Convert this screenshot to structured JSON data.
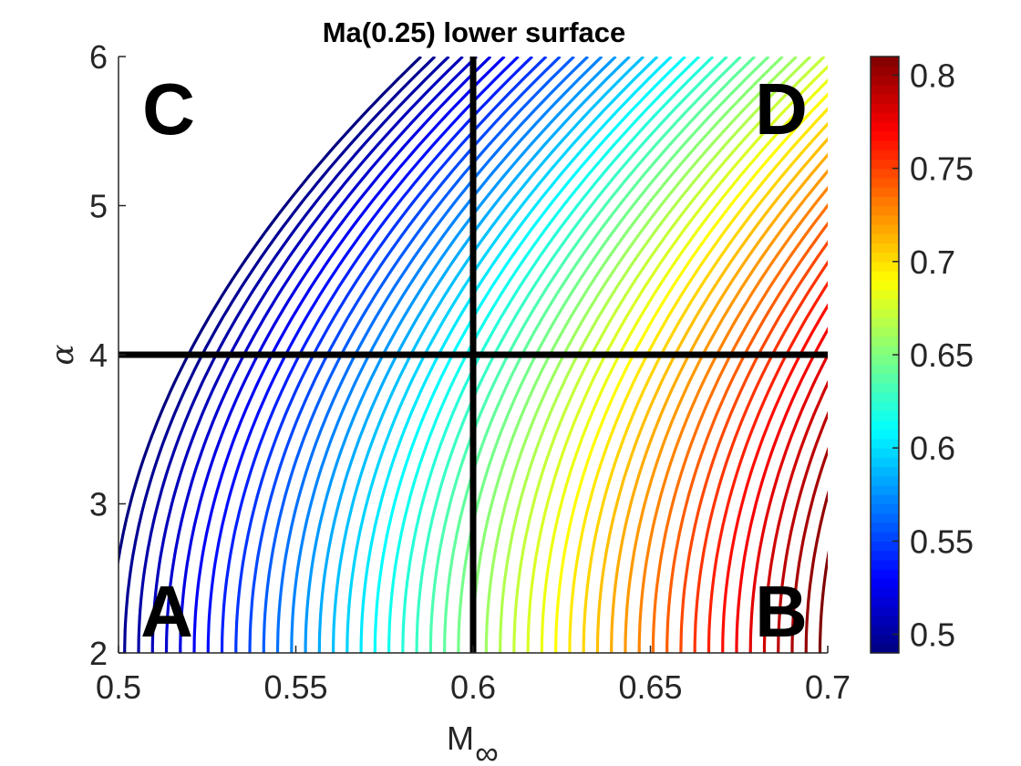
{
  "chart_data": {
    "type": "contour",
    "title": "Ma(0.25) lower surface",
    "xlabel": "M",
    "xlabel_subscript": "∞",
    "ylabel": "α",
    "xlim": [
      0.5,
      0.7
    ],
    "ylim": [
      2,
      6
    ],
    "xticks": [
      0.5,
      0.55,
      0.6,
      0.65,
      0.7
    ],
    "xtick_labels": [
      "0.5",
      "0.55",
      "0.6",
      "0.65",
      "0.7"
    ],
    "yticks": [
      2,
      3,
      4,
      5,
      6
    ],
    "ytick_labels": [
      "2",
      "3",
      "4",
      "5",
      "6"
    ],
    "colormap": "jet",
    "colorbar": {
      "range": [
        0.49,
        0.81
      ],
      "ticks": [
        0.5,
        0.55,
        0.6,
        0.65,
        0.7,
        0.75,
        0.8
      ],
      "tick_labels": [
        "0.5",
        "0.55",
        "0.6",
        "0.65",
        "0.7",
        "0.75",
        "0.8"
      ]
    },
    "contour_levels": {
      "start": 0.49,
      "end": 0.81,
      "count": 52
    },
    "contour_model": "level = 0.4935 + 1.6 * (M - 0.5) - 0.00875 * (alpha - 2)^2",
    "reference_lines": [
      {
        "orientation": "vertical",
        "x": 0.6,
        "color": "#000000"
      },
      {
        "orientation": "horizontal",
        "y": 4,
        "color": "#000000"
      }
    ],
    "quadrant_labels": [
      {
        "text": "A",
        "quadrant": "bottom-left"
      },
      {
        "text": "B",
        "quadrant": "bottom-right"
      },
      {
        "text": "C",
        "quadrant": "top-left"
      },
      {
        "text": "D",
        "quadrant": "top-right"
      }
    ],
    "grid": false
  }
}
